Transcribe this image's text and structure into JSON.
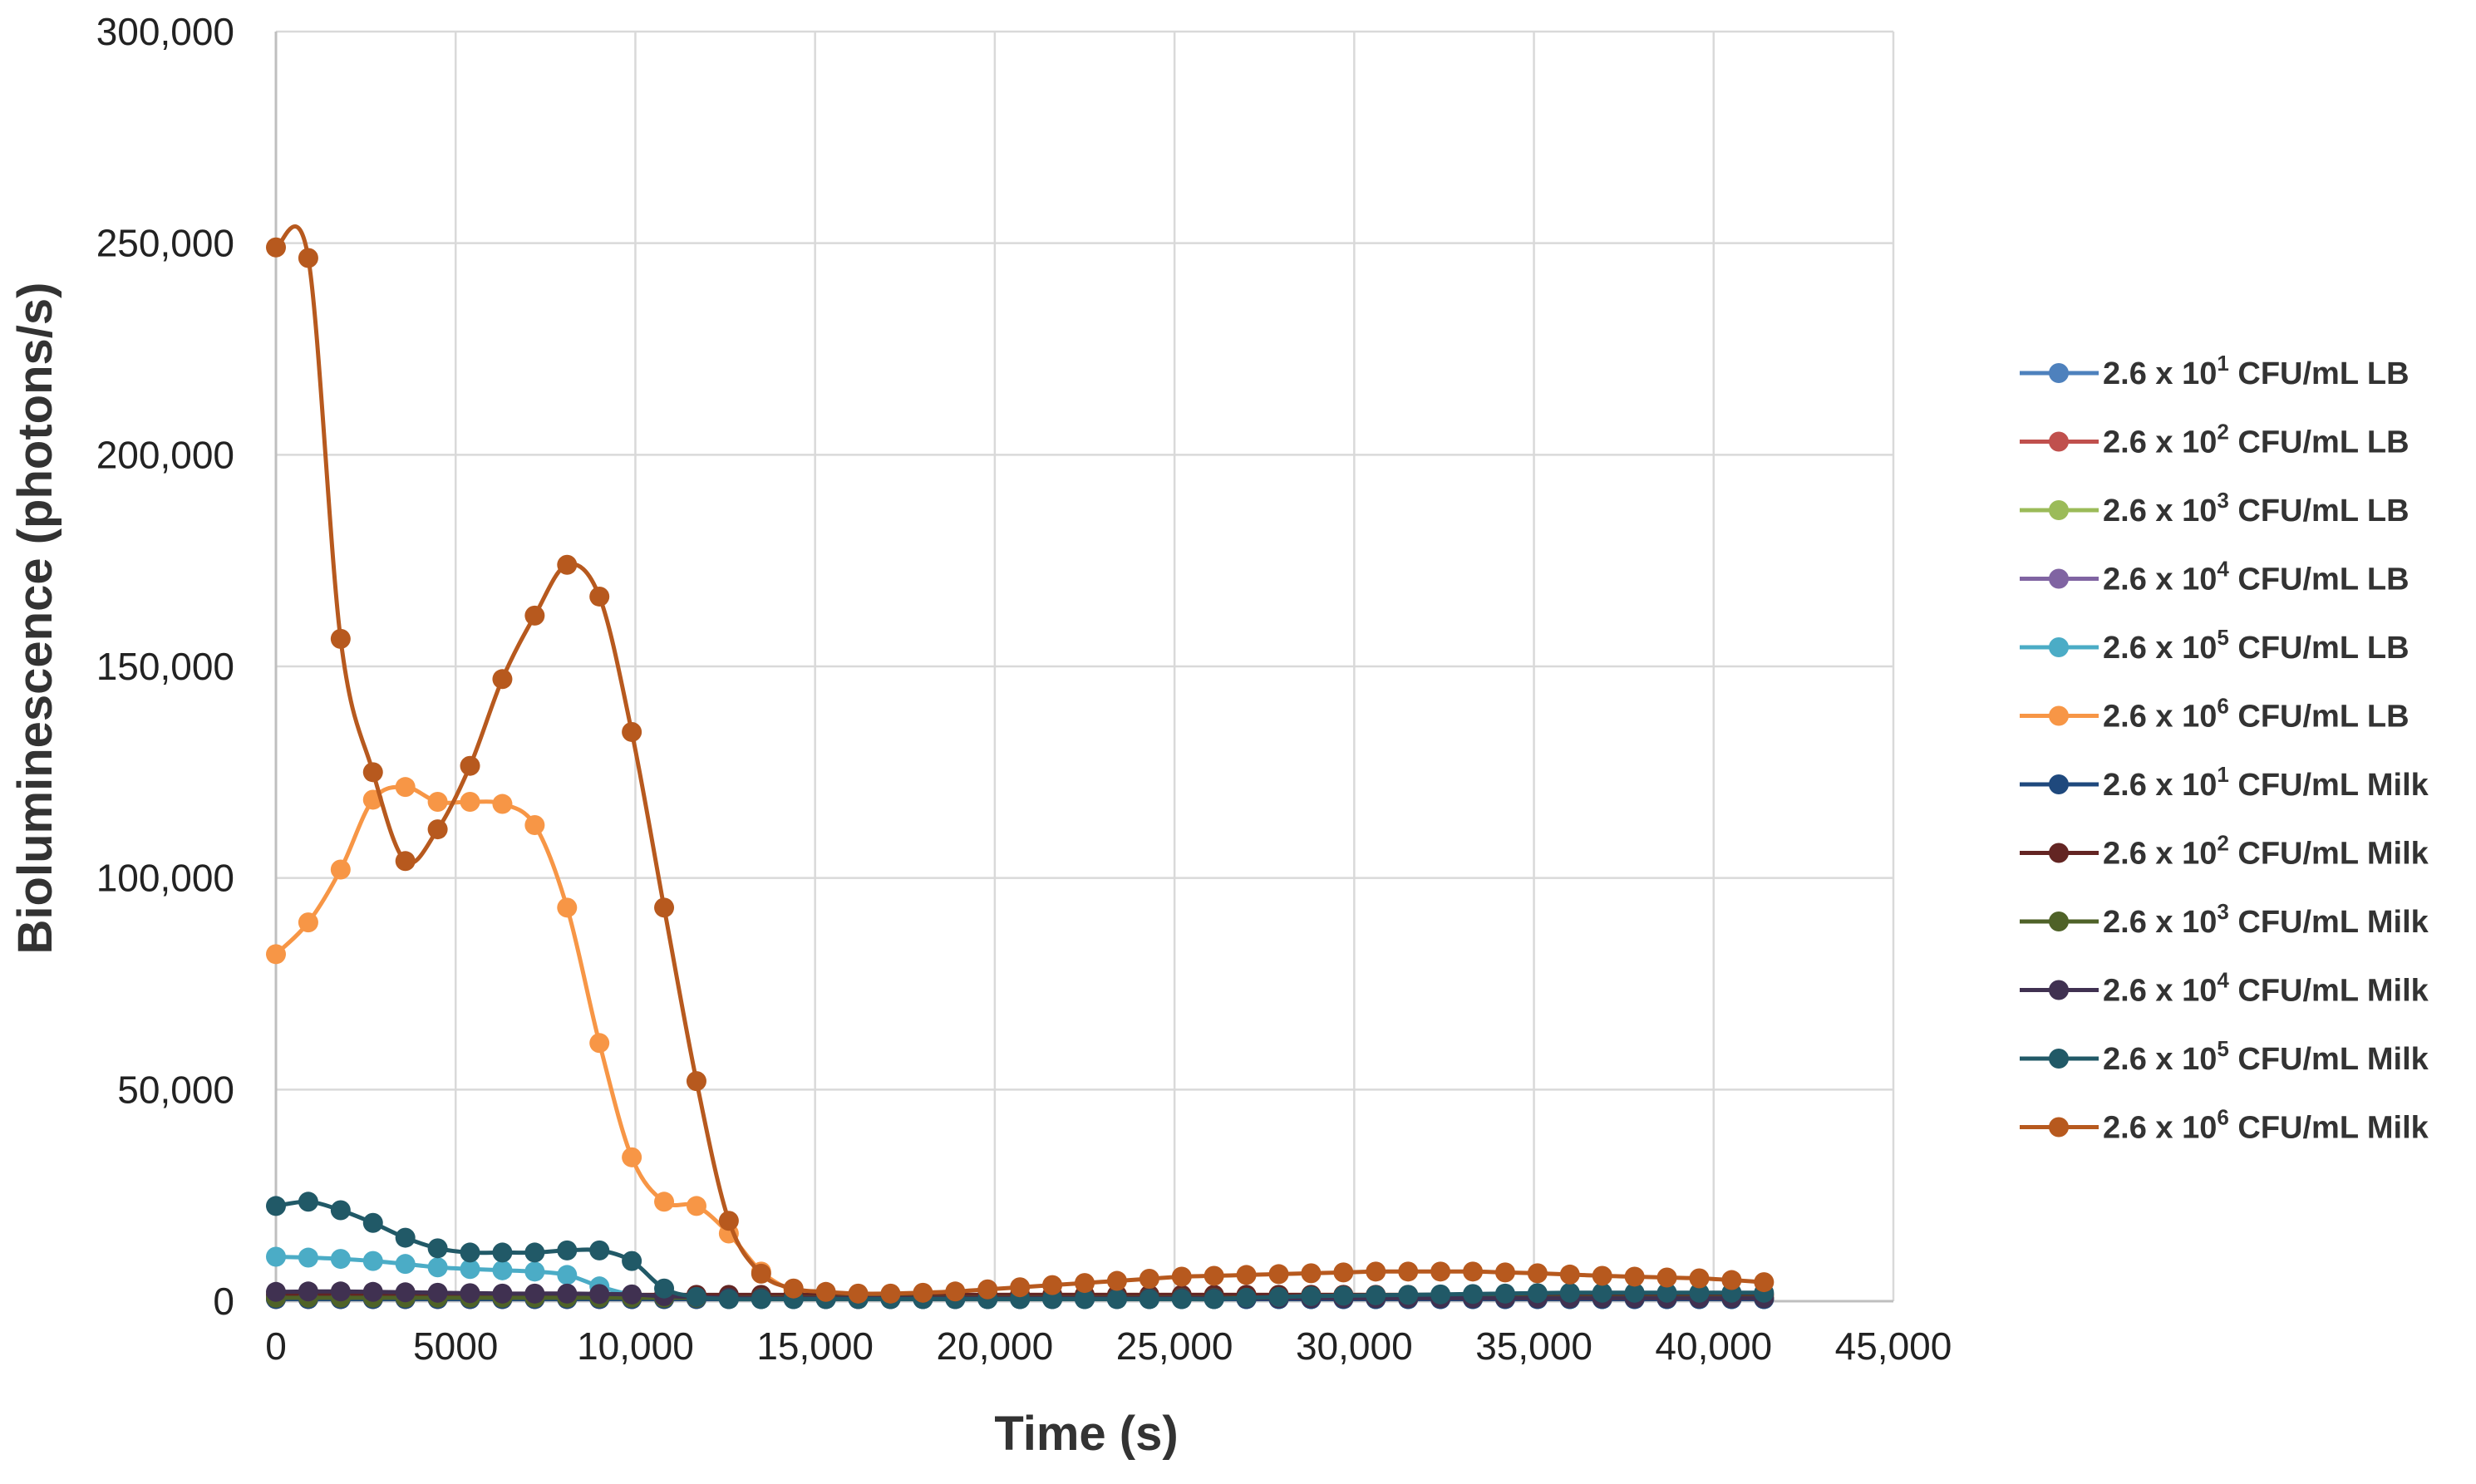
{
  "chart_data": {
    "type": "line",
    "title": "",
    "xlabel": "Time (s)",
    "ylabel": "Bioluminescence (photons/s)",
    "xlim": [
      0,
      45000
    ],
    "ylim": [
      0,
      300000
    ],
    "x_ticks": [
      "0",
      "5000",
      "10000",
      "15000",
      "20000",
      "25000",
      "30000",
      "35000",
      "40000",
      "45000"
    ],
    "y_ticks": [
      "0",
      "50000",
      "100000",
      "150000",
      "200000",
      "250000",
      "300000"
    ],
    "x_tick_values": [
      0,
      5000,
      10000,
      15000,
      20000,
      25000,
      30000,
      35000,
      40000,
      45000
    ],
    "y_tick_values": [
      0,
      50000,
      100000,
      150000,
      200000,
      250000,
      300000
    ],
    "grid": true,
    "legend_position": "right",
    "x": [
      0,
      900,
      1800,
      2700,
      3600,
      4500,
      5400,
      6300,
      7200,
      8100,
      9000,
      9900,
      10800,
      11700,
      12600,
      13500,
      14400,
      15300,
      16200,
      17100,
      18000,
      18900,
      19800,
      20700,
      21600,
      22500,
      23400,
      24300,
      25200,
      26100,
      27000,
      27900,
      28800,
      29700,
      30600,
      31500,
      32400,
      33300,
      34200,
      35100,
      36000,
      36900,
      37800,
      38700,
      39600,
      40500,
      41400
    ],
    "series": [
      {
        "name_prefix": "2.6 x 10",
        "exponent": "1",
        "name_suffix": " CFU/mL LB",
        "color": "#4E81BD",
        "values": [
          500,
          500,
          500,
          500,
          500,
          500,
          500,
          500,
          500,
          500,
          500,
          500,
          500,
          500,
          500,
          500,
          500,
          500,
          500,
          500,
          500,
          500,
          500,
          500,
          500,
          500,
          500,
          500,
          500,
          500,
          500,
          500,
          500,
          500,
          500,
          500,
          500,
          500,
          500,
          500,
          500,
          500,
          500,
          500,
          500,
          500,
          500
        ]
      },
      {
        "name_prefix": "2.6 x 10",
        "exponent": "2",
        "name_suffix": " CFU/mL LB",
        "color": "#C0504D",
        "values": [
          500,
          500,
          500,
          500,
          500,
          500,
          500,
          500,
          500,
          500,
          500,
          500,
          500,
          500,
          500,
          500,
          500,
          500,
          500,
          500,
          500,
          500,
          500,
          500,
          500,
          500,
          500,
          500,
          500,
          500,
          500,
          500,
          500,
          500,
          500,
          500,
          500,
          500,
          500,
          500,
          500,
          500,
          500,
          500,
          500,
          500,
          500
        ]
      },
      {
        "name_prefix": "2.6 x 10",
        "exponent": "3",
        "name_suffix": " CFU/mL LB",
        "color": "#9BBB59",
        "values": [
          600,
          600,
          600,
          600,
          600,
          600,
          600,
          600,
          600,
          600,
          600,
          600,
          500,
          500,
          500,
          500,
          500,
          500,
          500,
          500,
          500,
          500,
          500,
          500,
          500,
          500,
          500,
          500,
          500,
          500,
          500,
          500,
          500,
          500,
          500,
          500,
          500,
          500,
          500,
          500,
          500,
          500,
          500,
          500,
          500,
          500,
          500
        ]
      },
      {
        "name_prefix": "2.6 x 10",
        "exponent": "4",
        "name_suffix": " CFU/mL LB",
        "color": "#8064A2",
        "values": [
          1200,
          1200,
          1200,
          1200,
          1100,
          1100,
          1100,
          1000,
          1000,
          1000,
          900,
          900,
          700,
          600,
          500,
          500,
          500,
          500,
          500,
          500,
          500,
          500,
          500,
          500,
          500,
          500,
          500,
          500,
          500,
          500,
          500,
          500,
          500,
          500,
          500,
          500,
          500,
          500,
          500,
          500,
          500,
          500,
          500,
          500,
          500,
          500,
          500
        ]
      },
      {
        "name_prefix": "2.6 x 10",
        "exponent": "5",
        "name_suffix": " CFU/mL LB",
        "color": "#4BACC6",
        "values": [
          10500,
          10300,
          10000,
          9500,
          8800,
          8000,
          7600,
          7300,
          7000,
          6200,
          3500,
          1500,
          800,
          600,
          500,
          500,
          500,
          500,
          500,
          500,
          500,
          500,
          500,
          500,
          500,
          500,
          500,
          500,
          500,
          500,
          500,
          500,
          500,
          500,
          500,
          500,
          500,
          500,
          500,
          500,
          500,
          500,
          500,
          500,
          500,
          500,
          500
        ]
      },
      {
        "name_prefix": "2.6 x 10",
        "exponent": "6",
        "name_suffix": " CFU/mL LB",
        "color": "#F79646",
        "values": [
          82000,
          89500,
          102000,
          118500,
          121500,
          118000,
          118000,
          117500,
          112500,
          93000,
          61000,
          34000,
          23500,
          22500,
          16000,
          7000,
          2500,
          1500,
          1200,
          1200,
          1200,
          1300,
          1500,
          1500,
          1500,
          1500,
          1500,
          1500,
          1500,
          1500,
          1500,
          1500,
          1500,
          1500,
          1500,
          1500,
          1500,
          1500,
          1500,
          1500,
          1500,
          1500,
          1500,
          1500,
          1500,
          1500,
          1500
        ]
      },
      {
        "name_prefix": "2.6 x 10",
        "exponent": "1",
        "name_suffix": " CFU/mL Milk",
        "color": "#1F497D",
        "values": [
          500,
          500,
          500,
          500,
          500,
          500,
          500,
          500,
          500,
          500,
          500,
          500,
          500,
          500,
          500,
          500,
          500,
          500,
          500,
          500,
          500,
          500,
          500,
          500,
          500,
          500,
          500,
          500,
          500,
          500,
          500,
          500,
          500,
          500,
          500,
          500,
          500,
          500,
          500,
          500,
          500,
          500,
          500,
          500,
          500,
          500,
          500
        ]
      },
      {
        "name_prefix": "2.6 x 10",
        "exponent": "2",
        "name_suffix": " CFU/mL Milk",
        "color": "#632523",
        "values": [
          1500,
          1500,
          1500,
          1500,
          1500,
          1500,
          1500,
          1500,
          1500,
          1500,
          1500,
          1500,
          1500,
          1500,
          1500,
          1500,
          1500,
          1500,
          1500,
          1500,
          1500,
          1500,
          1500,
          1500,
          1500,
          1500,
          1500,
          1500,
          1500,
          1500,
          1500,
          1500,
          1500,
          1500,
          1500,
          1500,
          1500,
          1500,
          1500,
          1500,
          1500,
          1500,
          1500,
          1500,
          1500,
          1500,
          1500
        ]
      },
      {
        "name_prefix": "2.6 x 10",
        "exponent": "3",
        "name_suffix": " CFU/mL Milk",
        "color": "#4F6228",
        "values": [
          800,
          800,
          800,
          800,
          800,
          800,
          800,
          800,
          800,
          800,
          800,
          800,
          800,
          800,
          800,
          800,
          800,
          800,
          800,
          800,
          800,
          800,
          800,
          800,
          800,
          800,
          800,
          800,
          800,
          800,
          800,
          800,
          800,
          800,
          800,
          800,
          800,
          800,
          800,
          800,
          800,
          800,
          800,
          800,
          800,
          800,
          800
        ]
      },
      {
        "name_prefix": "2.6 x 10",
        "exponent": "4",
        "name_suffix": " CFU/mL Milk",
        "color": "#403151",
        "values": [
          2200,
          2300,
          2300,
          2200,
          2100,
          2000,
          1900,
          1800,
          1800,
          1800,
          1700,
          1600,
          1200,
          1000,
          800,
          700,
          700,
          700,
          700,
          700,
          700,
          700,
          700,
          700,
          700,
          700,
          700,
          700,
          700,
          700,
          700,
          700,
          700,
          700,
          700,
          700,
          700,
          700,
          700,
          700,
          700,
          700,
          700,
          700,
          700,
          700,
          700
        ]
      },
      {
        "name_prefix": "2.6 x 10",
        "exponent": "5",
        "name_suffix": " CFU/mL Milk",
        "color": "#215967",
        "values": [
          22500,
          23500,
          21500,
          18500,
          15000,
          12500,
          11500,
          11500,
          11500,
          12000,
          12000,
          9500,
          3000,
          1000,
          500,
          500,
          500,
          500,
          500,
          500,
          500,
          500,
          500,
          500,
          500,
          500,
          500,
          500,
          500,
          500,
          800,
          1000,
          1200,
          1300,
          1400,
          1500,
          1600,
          1700,
          1800,
          1900,
          2000,
          2000,
          2000,
          2000,
          2000,
          2000,
          2000
        ]
      },
      {
        "name_prefix": "2.6 x 10",
        "exponent": "6",
        "name_suffix": " CFU/mL Milk",
        "color": "#B7591E",
        "values": [
          249000,
          246500,
          156500,
          125000,
          104000,
          111500,
          126500,
          147000,
          162000,
          174000,
          166500,
          134500,
          93000,
          52000,
          19000,
          6500,
          3000,
          2200,
          1800,
          1800,
          2000,
          2300,
          2800,
          3300,
          3800,
          4300,
          4800,
          5300,
          5800,
          6000,
          6200,
          6400,
          6600,
          6800,
          7000,
          7000,
          7000,
          7000,
          6800,
          6600,
          6300,
          6000,
          5800,
          5600,
          5400,
          5000,
          4500
        ]
      }
    ]
  }
}
